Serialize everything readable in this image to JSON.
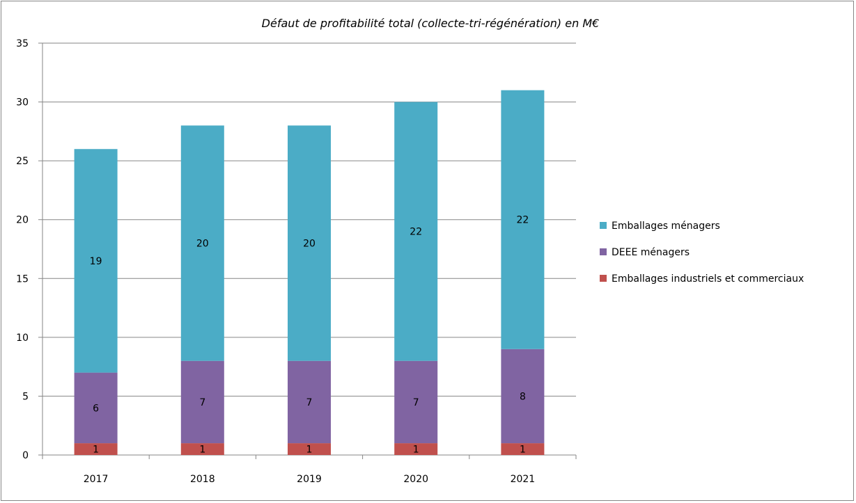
{
  "chart_data": {
    "type": "bar",
    "stacked": true,
    "title": "Défaut de profitabilité total (collecte-tri-régénération) en M€",
    "xlabel": "",
    "ylabel": "",
    "categories": [
      "2017",
      "2018",
      "2019",
      "2020",
      "2021"
    ],
    "ylim": [
      0,
      35
    ],
    "yticks": [
      0,
      5,
      10,
      15,
      20,
      25,
      30,
      35
    ],
    "grid": true,
    "legend_position": "right",
    "series": [
      {
        "name": "Emballages industriels et commerciaux",
        "color": "#c0504d",
        "values": [
          1,
          1,
          1,
          1,
          1
        ]
      },
      {
        "name": "DEEE ménagers",
        "color": "#8064a2",
        "values": [
          6,
          7,
          7,
          7,
          8
        ]
      },
      {
        "name": "Emballages ménagers",
        "color": "#4bacc6",
        "values": [
          19,
          20,
          20,
          22,
          22
        ]
      }
    ],
    "legend_order": [
      "Emballages ménagers",
      "DEEE ménagers",
      "Emballages industriels et commerciaux"
    ]
  }
}
